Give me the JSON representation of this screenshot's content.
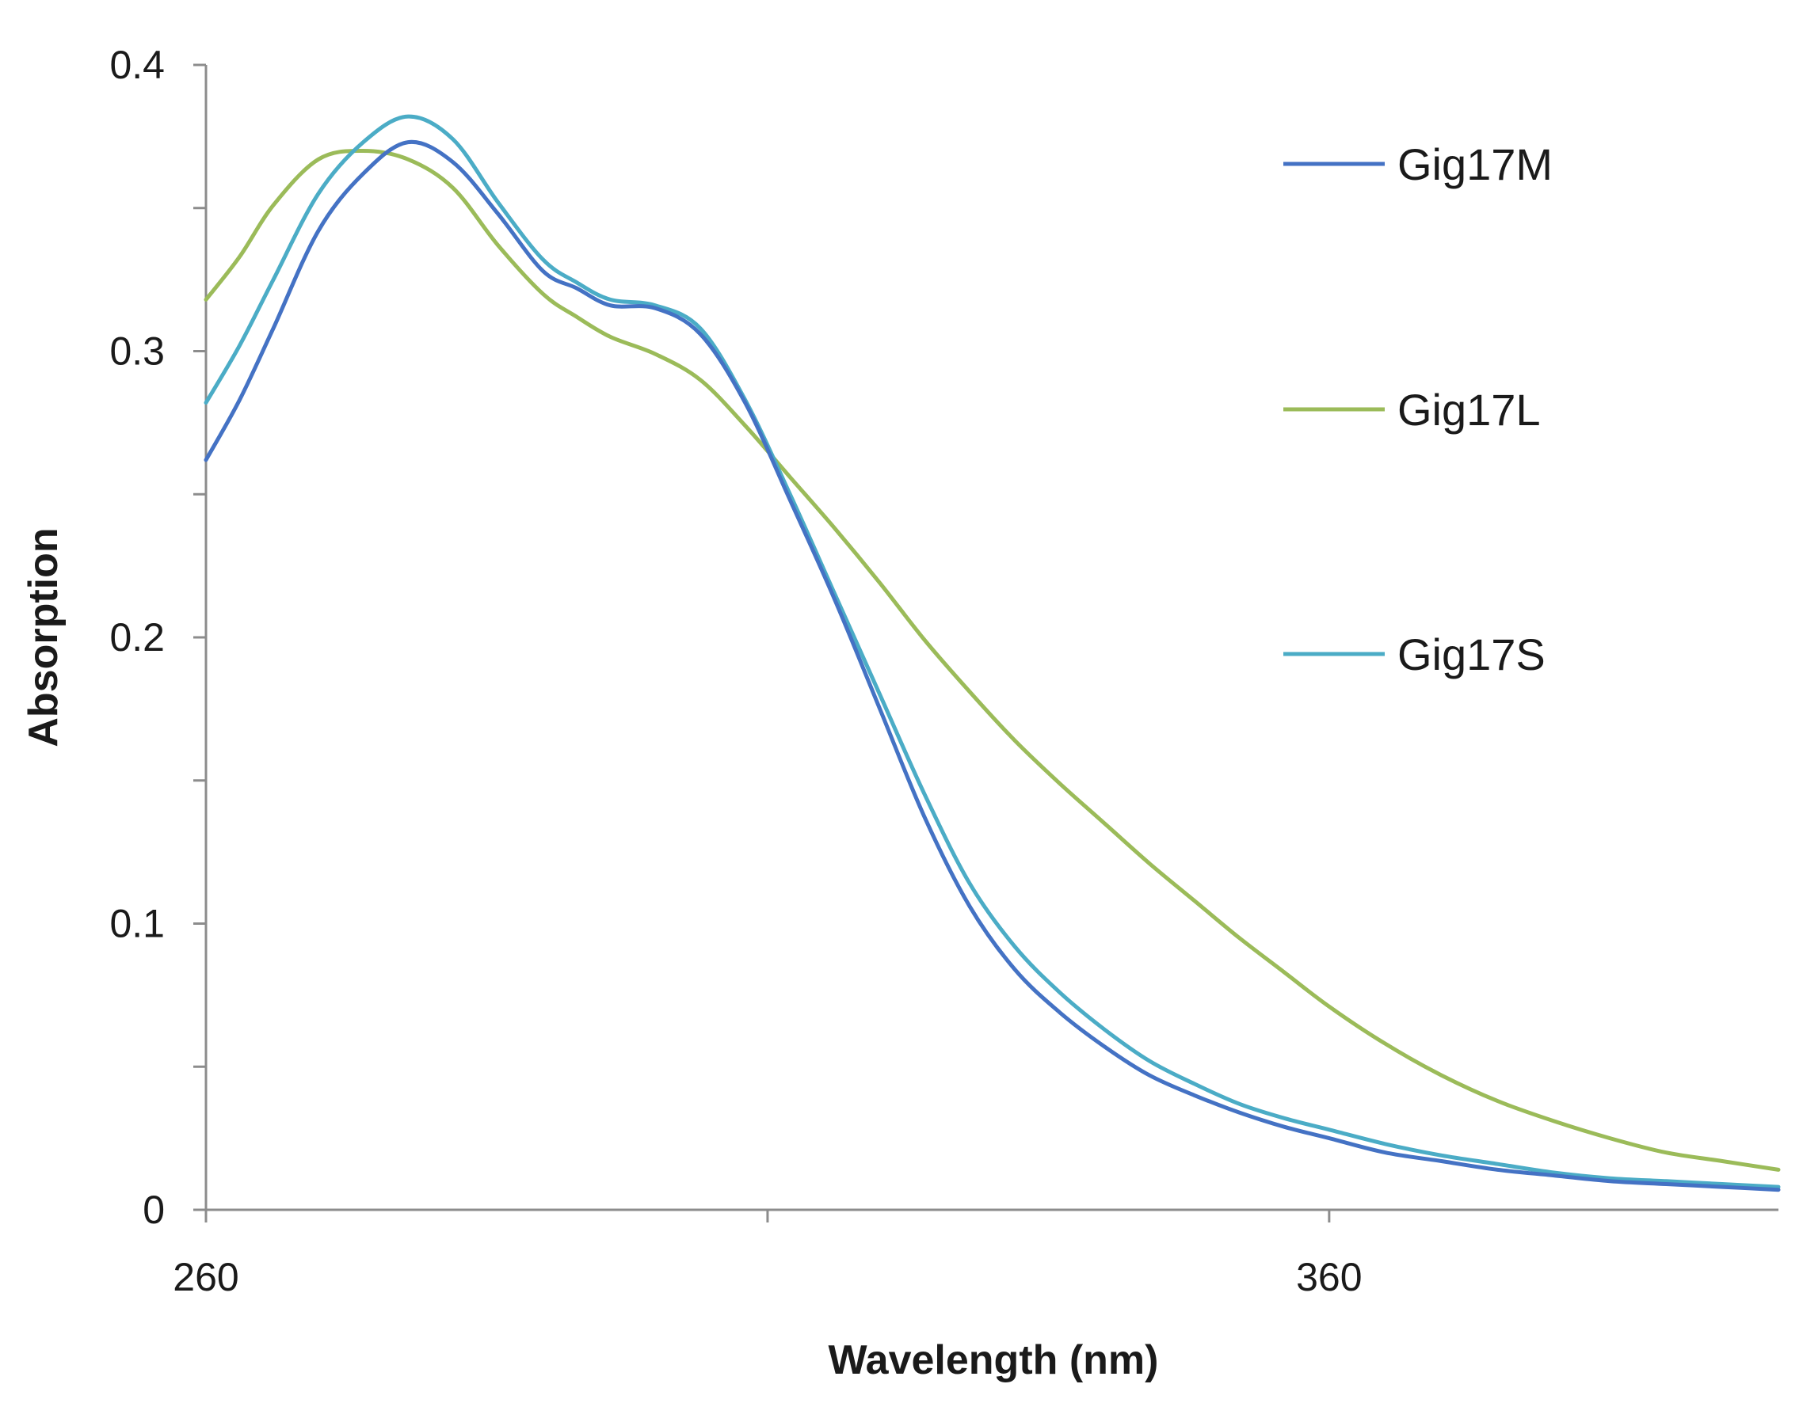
{
  "chart_data": {
    "type": "line",
    "title": "",
    "xlabel": "Wavelength (nm)",
    "ylabel": "Absorption",
    "xlim": [
      260,
      400
    ],
    "ylim": [
      0,
      0.4
    ],
    "x_tick_labels": [
      "260",
      "360"
    ],
    "y_tick_labels": [
      "0",
      "0.1",
      "0.2",
      "0.3",
      "0.4"
    ],
    "grid": false,
    "legend_position": "right",
    "series": [
      {
        "name": "Gig17M",
        "color": "#4472C4",
        "x": [
          260,
          263,
          266,
          270,
          274,
          278,
          282,
          286,
          290,
          293,
          296,
          300,
          304,
          308,
          312,
          316,
          320,
          324,
          328,
          332,
          336,
          340,
          344,
          348,
          352,
          356,
          360,
          365,
          370,
          375,
          380,
          385,
          390,
          395,
          400
        ],
        "y": [
          0.262,
          0.283,
          0.308,
          0.342,
          0.362,
          0.373,
          0.366,
          0.348,
          0.328,
          0.322,
          0.316,
          0.315,
          0.306,
          0.282,
          0.248,
          0.213,
          0.175,
          0.137,
          0.106,
          0.084,
          0.069,
          0.057,
          0.047,
          0.04,
          0.034,
          0.029,
          0.025,
          0.02,
          0.017,
          0.014,
          0.012,
          0.01,
          0.009,
          0.008,
          0.007
        ]
      },
      {
        "name": "Gig17L",
        "color": "#9BBB59",
        "x": [
          260,
          263,
          266,
          270,
          274,
          278,
          282,
          286,
          290,
          293,
          296,
          300,
          304,
          308,
          312,
          316,
          320,
          324,
          328,
          332,
          336,
          340,
          344,
          348,
          352,
          356,
          360,
          365,
          370,
          375,
          380,
          385,
          390,
          395,
          400
        ],
        "y": [
          0.318,
          0.333,
          0.351,
          0.367,
          0.37,
          0.367,
          0.357,
          0.337,
          0.32,
          0.312,
          0.305,
          0.299,
          0.29,
          0.274,
          0.256,
          0.238,
          0.219,
          0.199,
          0.181,
          0.164,
          0.149,
          0.135,
          0.121,
          0.108,
          0.095,
          0.083,
          0.071,
          0.058,
          0.047,
          0.038,
          0.031,
          0.025,
          0.02,
          0.017,
          0.014
        ]
      },
      {
        "name": "Gig17S",
        "color": "#4BACC6",
        "x": [
          260,
          263,
          266,
          270,
          274,
          278,
          282,
          286,
          290,
          293,
          296,
          300,
          304,
          308,
          312,
          316,
          320,
          324,
          328,
          332,
          336,
          340,
          344,
          348,
          352,
          356,
          360,
          365,
          370,
          375,
          380,
          385,
          390,
          395,
          400
        ],
        "y": [
          0.282,
          0.302,
          0.325,
          0.355,
          0.373,
          0.382,
          0.374,
          0.352,
          0.332,
          0.324,
          0.318,
          0.316,
          0.308,
          0.283,
          0.25,
          0.215,
          0.18,
          0.145,
          0.114,
          0.092,
          0.076,
          0.063,
          0.052,
          0.044,
          0.037,
          0.032,
          0.028,
          0.023,
          0.019,
          0.016,
          0.013,
          0.011,
          0.01,
          0.009,
          0.008
        ]
      }
    ]
  }
}
